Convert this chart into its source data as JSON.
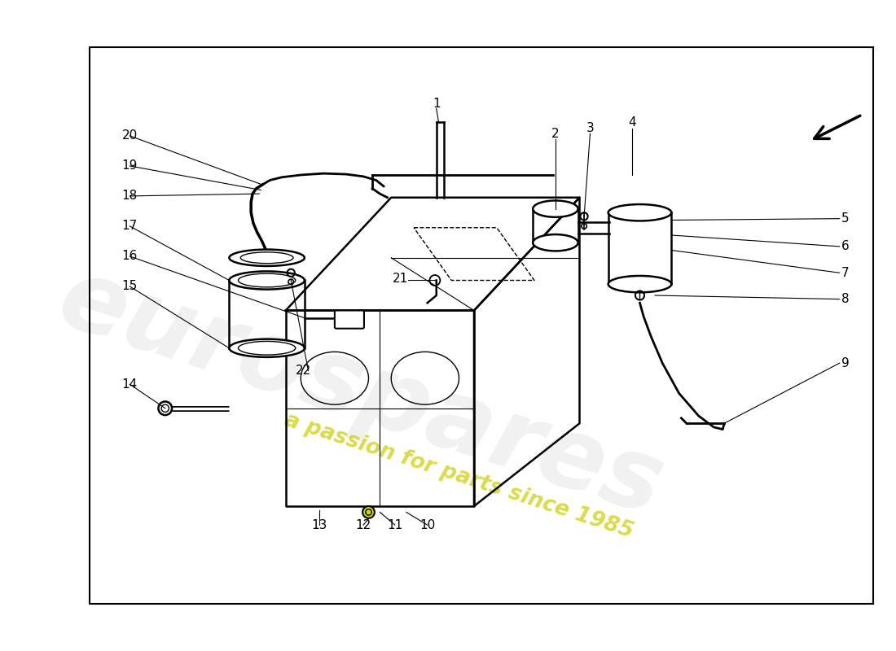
{
  "bg_color": "#ffffff",
  "line_color": "#000000",
  "watermark_text1": "eurospares",
  "watermark_text2": "a passion for parts since 1985",
  "wm_color1": "#cccccc",
  "wm_color2": "#cccc00",
  "fs": 11
}
